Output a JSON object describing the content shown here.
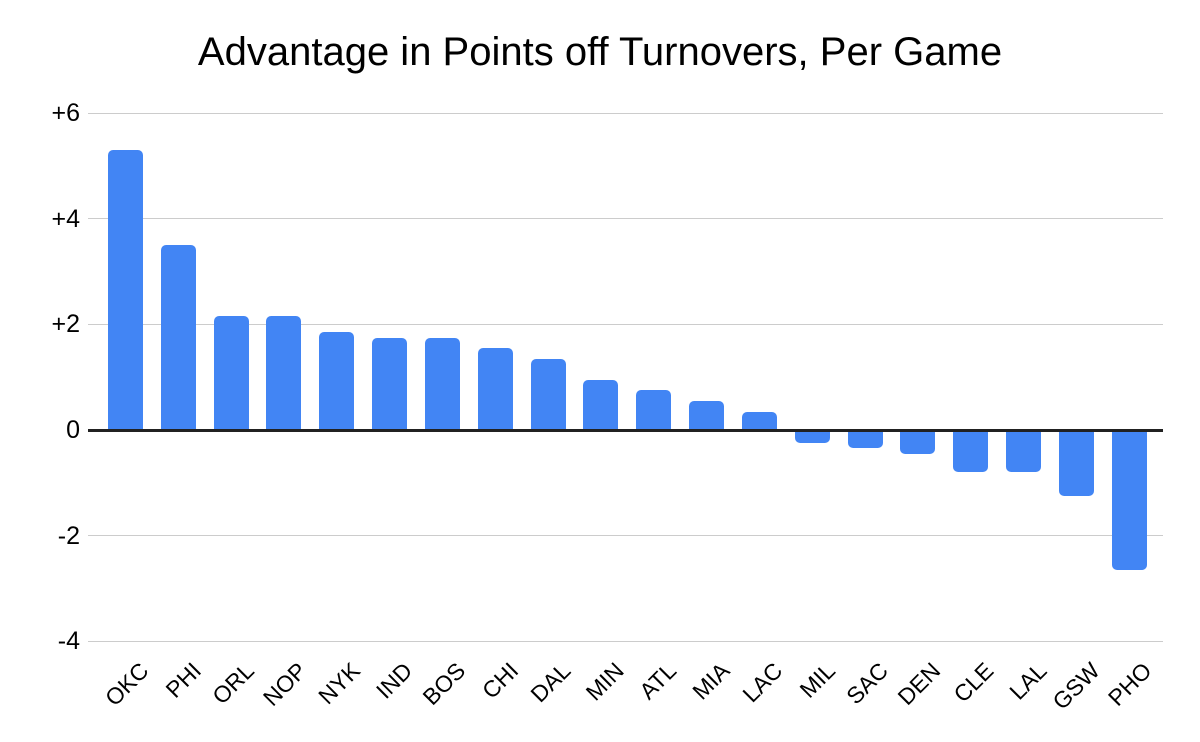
{
  "chart_data": {
    "type": "bar",
    "title": "Advantage in Points off Turnovers, Per Game",
    "categories": [
      "OKC",
      "PHI",
      "ORL",
      "NOP",
      "NYK",
      "IND",
      "BOS",
      "CHI",
      "DAL",
      "MIN",
      "ATL",
      "MIA",
      "LAC",
      "MIL",
      "SAC",
      "DEN",
      "CLE",
      "LAL",
      "GSW",
      "PHO"
    ],
    "values": [
      5.3,
      3.5,
      2.15,
      2.15,
      1.85,
      1.75,
      1.75,
      1.55,
      1.35,
      0.95,
      0.75,
      0.55,
      0.35,
      -0.25,
      -0.35,
      -0.45,
      -0.8,
      -0.8,
      -1.25,
      -2.65
    ],
    "xlabel": "",
    "ylabel": "",
    "ylim": [
      -4,
      6
    ],
    "yticks": [
      {
        "value": 6,
        "label": "+6"
      },
      {
        "value": 4,
        "label": "+4"
      },
      {
        "value": 2,
        "label": "+2"
      },
      {
        "value": 0,
        "label": "0"
      },
      {
        "value": -2,
        "label": "-2"
      },
      {
        "value": -4,
        "label": "-4"
      }
    ],
    "grid": true,
    "legend_position": "none",
    "colors": {
      "bar": "#4285f4",
      "gridline": "#cccccc",
      "axis": "#212121",
      "text": "#000000",
      "background": "#ffffff"
    }
  }
}
